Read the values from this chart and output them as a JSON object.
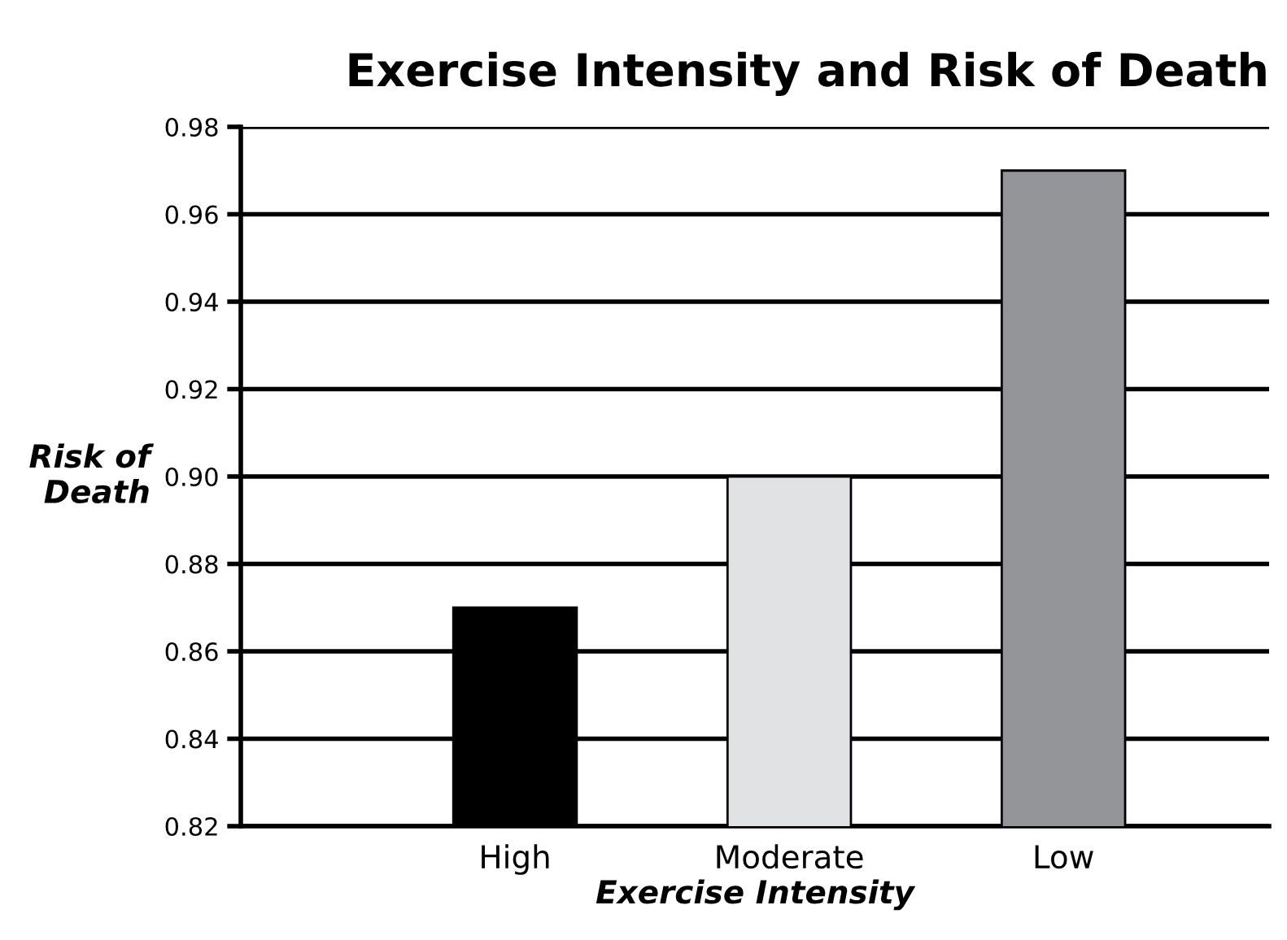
{
  "chart_data": {
    "type": "bar",
    "title": "Exercise Intensity and Risk of Death",
    "xlabel": "Exercise Intensity",
    "ylabel": "Risk of\nDeath",
    "categories": [
      "High",
      "Moderate",
      "Low"
    ],
    "values": [
      0.87,
      0.9,
      0.97
    ],
    "colors": [
      "#000000",
      "#e1e2e3",
      "#939598"
    ],
    "ylim": [
      0.82,
      0.98
    ],
    "yticks": [
      0.82,
      0.84,
      0.86,
      0.88,
      {
        "value": 0.9,
        "label": "0.90"
      },
      0.92,
      0.94,
      0.96,
      0.98
    ],
    "grid": "y",
    "legend": false
  }
}
